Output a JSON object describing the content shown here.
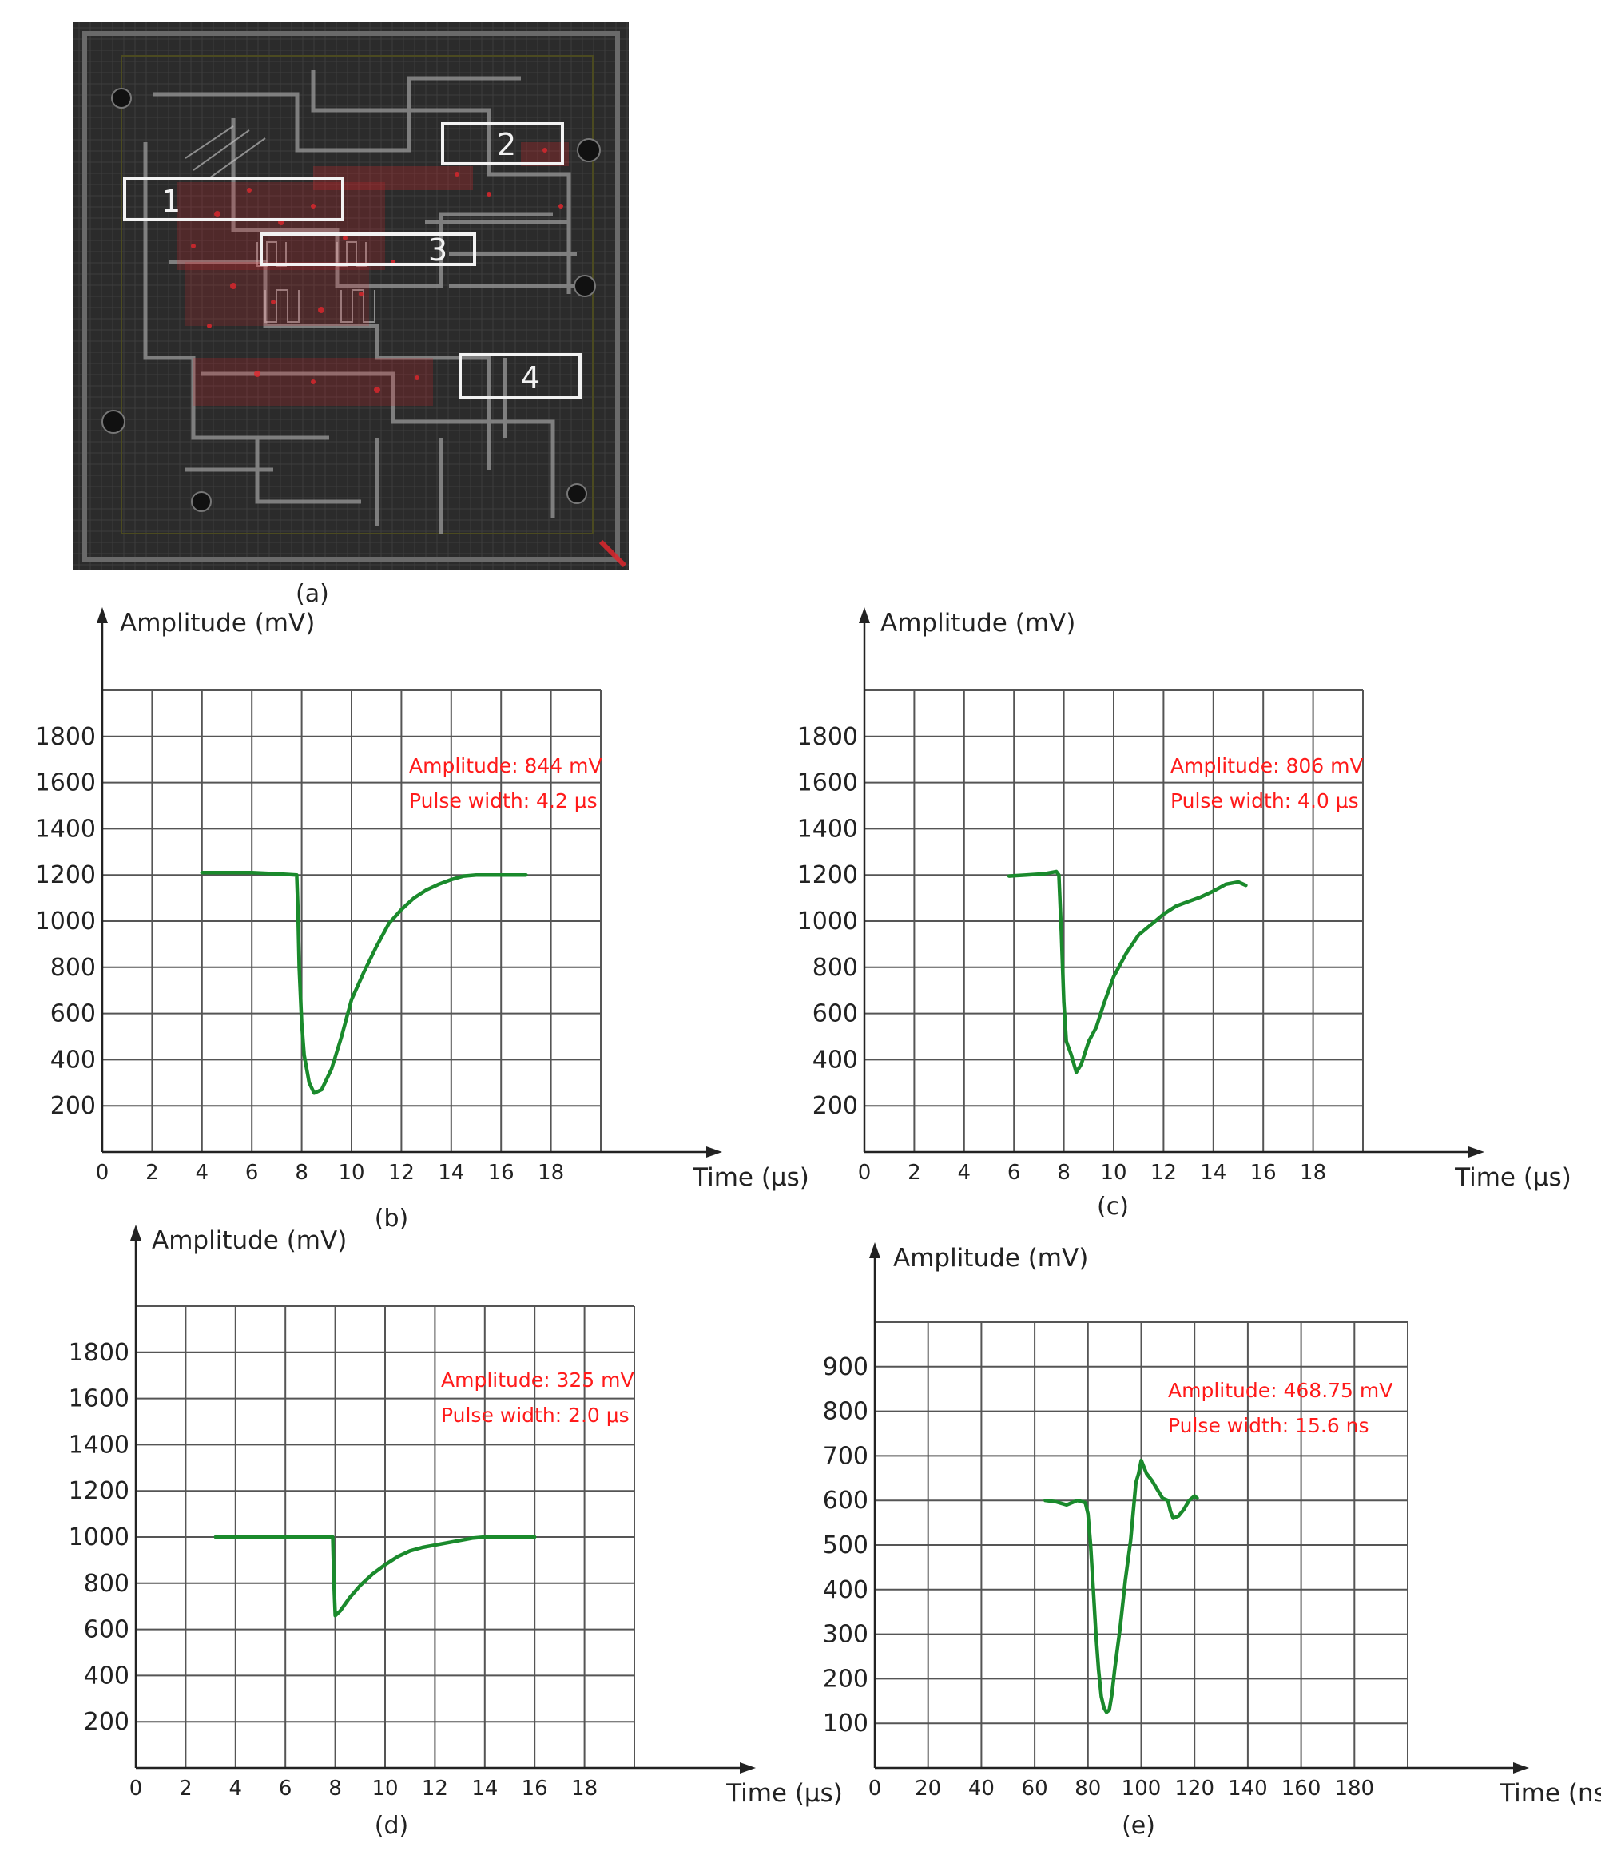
{
  "figure": {
    "panel_a": {
      "caption": "(a)",
      "regions": [
        {
          "label": "1"
        },
        {
          "label": "2"
        },
        {
          "label": "3"
        },
        {
          "label": "4"
        }
      ]
    }
  },
  "colors": {
    "grid": "#555555",
    "trace": "#1a8a2c",
    "annotation": "#ff1a1a",
    "die_bg": "#2a2a2a",
    "hotspot": "#e0282d"
  },
  "chart_data": [
    {
      "id": "b",
      "caption": "(b)",
      "type": "line",
      "xlabel": "Time (μs)",
      "ylabel": "Amplitude (mV)",
      "xlim": [
        0,
        20
      ],
      "ylim": [
        0,
        2000
      ],
      "xticks": [
        0,
        2,
        4,
        6,
        8,
        10,
        12,
        14,
        16,
        18
      ],
      "yticks": [
        200,
        400,
        600,
        800,
        1000,
        1200,
        1400,
        1600,
        1800
      ],
      "grid": true,
      "annotations": [
        "Amplitude: 844 mV",
        "Pulse width: 4.2 μs"
      ],
      "series": [
        {
          "x": [
            4,
            5,
            6,
            7,
            7.8,
            7.85,
            7.9,
            8.0,
            8.1,
            8.3,
            8.5,
            8.8,
            9.2,
            9.6,
            10.0,
            10.5,
            11.0,
            11.5,
            12.0,
            12.5,
            13.0,
            13.5,
            14.0,
            14.5,
            15.0,
            16.0,
            17.0
          ],
          "y": [
            1210,
            1210,
            1210,
            1205,
            1200,
            1050,
            800,
            560,
            420,
            300,
            255,
            270,
            360,
            500,
            660,
            780,
            890,
            990,
            1050,
            1100,
            1135,
            1160,
            1180,
            1195,
            1200,
            1200,
            1200
          ]
        }
      ]
    },
    {
      "id": "c",
      "caption": "(c)",
      "type": "line",
      "xlabel": "Time (μs)",
      "ylabel": "Amplitude (mV)",
      "xlim": [
        0,
        20
      ],
      "ylim": [
        0,
        2000
      ],
      "xticks": [
        0,
        2,
        4,
        6,
        8,
        10,
        12,
        14,
        16,
        18
      ],
      "yticks": [
        200,
        400,
        600,
        800,
        1000,
        1200,
        1400,
        1600,
        1800
      ],
      "grid": true,
      "annotations": [
        "Amplitude: 806 mV",
        "Pulse width: 4.0 μs"
      ],
      "series": [
        {
          "x": [
            5.8,
            6.5,
            7.2,
            7.7,
            7.8,
            7.9,
            8.0,
            8.1,
            8.3,
            8.5,
            8.7,
            9.0,
            9.3,
            9.6,
            10.0,
            10.5,
            11.0,
            11.5,
            12.0,
            12.5,
            13.0,
            13.5,
            14.0,
            14.5,
            15.0,
            15.3
          ],
          "y": [
            1195,
            1200,
            1205,
            1215,
            1200,
            950,
            650,
            480,
            420,
            345,
            380,
            480,
            540,
            640,
            760,
            860,
            940,
            985,
            1030,
            1065,
            1085,
            1105,
            1130,
            1160,
            1170,
            1155
          ]
        }
      ]
    },
    {
      "id": "d",
      "caption": "(d)",
      "type": "line",
      "xlabel": "Time (μs)",
      "ylabel": "Amplitude (mV)",
      "xlim": [
        0,
        20
      ],
      "ylim": [
        0,
        2000
      ],
      "xticks": [
        0,
        2,
        4,
        6,
        8,
        10,
        12,
        14,
        16,
        18
      ],
      "yticks": [
        200,
        400,
        600,
        800,
        1000,
        1200,
        1400,
        1600,
        1800
      ],
      "grid": true,
      "annotations": [
        "Amplitude: 325 mV",
        "Pulse width: 2.0 μs"
      ],
      "series": [
        {
          "x": [
            3.2,
            5,
            7,
            7.9,
            7.95,
            8.0,
            8.2,
            8.6,
            9.0,
            9.5,
            10.0,
            10.5,
            11.0,
            11.5,
            12.0,
            12.5,
            13.0,
            13.5,
            14.0,
            15.0,
            16.0
          ],
          "y": [
            1000,
            1000,
            1000,
            1000,
            800,
            660,
            680,
            740,
            790,
            840,
            880,
            915,
            940,
            955,
            965,
            975,
            985,
            995,
            1000,
            1000,
            1000
          ]
        }
      ]
    },
    {
      "id": "e",
      "caption": "(e)",
      "type": "line",
      "xlabel": "Time (ns)",
      "ylabel": "Amplitude (mV)",
      "xlim": [
        0,
        200
      ],
      "ylim": [
        0,
        1000
      ],
      "xticks": [
        0,
        20,
        40,
        60,
        80,
        100,
        120,
        140,
        160,
        180
      ],
      "yticks": [
        100,
        200,
        300,
        400,
        500,
        600,
        700,
        800,
        900
      ],
      "grid": true,
      "annotations": [
        "Amplitude: 468.75 mV",
        "Pulse width: 15.6 ns"
      ],
      "series": [
        {
          "x": [
            64,
            68,
            72,
            76,
            79,
            80,
            81,
            82,
            83,
            84,
            85,
            86,
            87,
            88,
            89,
            90,
            92,
            94,
            96,
            98,
            99,
            100,
            101,
            102,
            104,
            106,
            108,
            110,
            111,
            112,
            114,
            116,
            118,
            120,
            121
          ],
          "y": [
            600,
            597,
            590,
            600,
            595,
            570,
            500,
            400,
            300,
            220,
            160,
            135,
            125,
            130,
            165,
            220,
            310,
            420,
            510,
            640,
            660,
            690,
            675,
            660,
            645,
            625,
            605,
            600,
            575,
            560,
            565,
            580,
            600,
            610,
            605
          ]
        }
      ]
    }
  ]
}
